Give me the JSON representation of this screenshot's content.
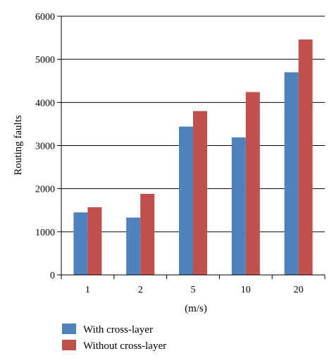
{
  "chart_data": {
    "type": "bar",
    "title": "",
    "xlabel": "(m/s)",
    "ylabel": "Routing faults",
    "categories": [
      "1",
      "2",
      "5",
      "10",
      "20"
    ],
    "series": [
      {
        "name": "With cross-layer",
        "color": "#4f81bd",
        "values": [
          1450,
          1330,
          3440,
          3190,
          4700
        ]
      },
      {
        "name": "Without cross-layer",
        "color": "#c0504d",
        "values": [
          1570,
          1880,
          3800,
          4240,
          5460
        ]
      }
    ],
    "ylim": [
      0,
      6000
    ],
    "yticks": [
      "0",
      "1000",
      "2000",
      "3000",
      "4000",
      "5000",
      "6000"
    ],
    "grid": true,
    "legend_position": "bottom-left"
  }
}
